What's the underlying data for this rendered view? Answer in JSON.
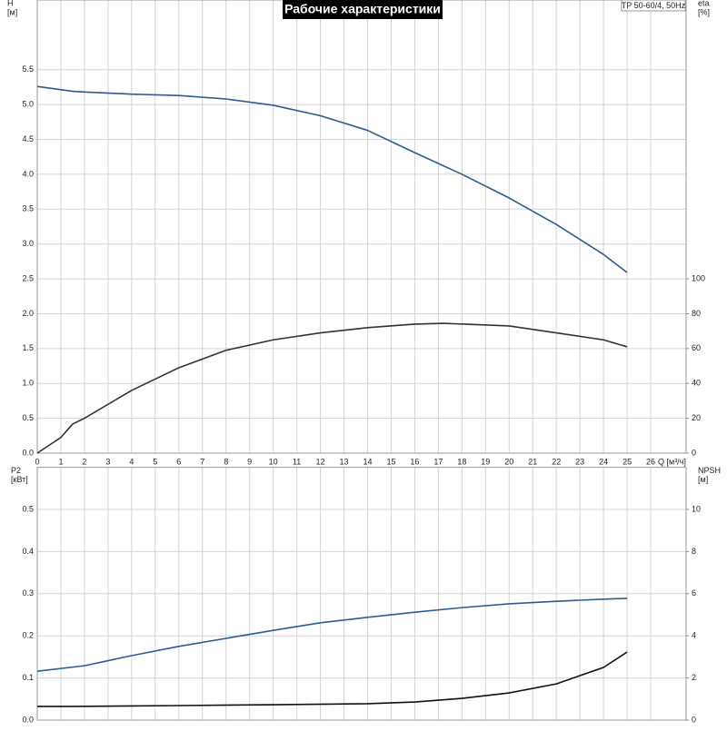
{
  "chart_data": [
    {
      "type": "line",
      "title": "Рабочие характеристики",
      "annotation": "TP 50-60/4, 50Hz",
      "ylabel": [
        "H",
        "[м]"
      ],
      "y2label": [
        "eta",
        "[%]"
      ],
      "xlabel": "Q [м³/ч]",
      "xlim": [
        0,
        27.5
      ],
      "xticks": [
        0,
        1,
        2,
        3,
        4,
        5,
        6,
        7,
        8,
        9,
        10,
        11,
        12,
        13,
        14,
        15,
        16,
        17,
        18,
        19,
        20,
        21,
        22,
        23,
        24,
        25,
        26
      ],
      "ylim": [
        0,
        6.5
      ],
      "yticks": [
        {
          "value": 0,
          "label": "0.0"
        },
        0.5,
        {
          "value": 1,
          "label": "1.0"
        },
        1.5,
        {
          "value": 2,
          "label": "2.0"
        },
        2.5,
        {
          "value": 3,
          "label": "3.0"
        },
        3.5,
        {
          "value": 4,
          "label": "4.0"
        },
        4.5,
        {
          "value": 5,
          "label": "5.0"
        },
        5.5
      ],
      "y2lim": [
        0,
        260
      ],
      "y2ticks": [
        0,
        20,
        40,
        60,
        80,
        100
      ],
      "grid": true,
      "series": [
        {
          "name": "H",
          "color": "#2e5b93",
          "x": [
            0,
            1.5,
            2,
            4,
            6,
            8,
            10,
            12,
            14,
            16,
            18,
            20,
            22,
            24,
            25
          ],
          "values": [
            5.26,
            5.19,
            5.18,
            5.15,
            5.13,
            5.08,
            4.99,
            4.84,
            4.63,
            4.31,
            4.0,
            3.66,
            3.28,
            2.85,
            2.59
          ]
        },
        {
          "name": "eta",
          "color": "#333333",
          "axis": "y2",
          "x": [
            0,
            1,
            1.5,
            2,
            4,
            6,
            8,
            10,
            12,
            14,
            16,
            17.2,
            20,
            22,
            24,
            25
          ],
          "values": [
            0,
            9,
            16.7,
            20,
            36,
            49,
            59,
            65,
            69,
            72,
            74,
            74.5,
            73,
            69,
            65,
            61
          ]
        }
      ]
    },
    {
      "type": "line",
      "ylabel": [
        "P2",
        "[кВт]"
      ],
      "y2label": [
        "NPSH",
        "[м]"
      ],
      "xlim": [
        0,
        27.5
      ],
      "ylim": [
        0,
        0.6
      ],
      "yticks": [
        {
          "value": 0,
          "label": "0.0"
        },
        0.1,
        0.2,
        0.3,
        0.4,
        0.5
      ],
      "y2lim": [
        0,
        12
      ],
      "y2ticks": [
        0,
        2,
        4,
        6,
        8,
        10
      ],
      "grid": true,
      "series": [
        {
          "name": "P2",
          "color": "#2e5b93",
          "x": [
            0,
            2,
            4,
            6,
            8,
            10,
            12,
            14,
            16,
            18,
            20,
            22,
            24,
            25
          ],
          "values": [
            0.116,
            0.129,
            0.153,
            0.175,
            0.194,
            0.213,
            0.231,
            0.244,
            0.256,
            0.267,
            0.276,
            0.282,
            0.287,
            0.289
          ]
        },
        {
          "name": "NPSH",
          "color": "#111111",
          "axis": "y2",
          "x": [
            0,
            1.5,
            6,
            10,
            14,
            16,
            18,
            20,
            22,
            24,
            25
          ],
          "values": [
            0.65,
            0.65,
            0.69,
            0.73,
            0.78,
            0.86,
            1.03,
            1.29,
            1.72,
            2.5,
            3.23
          ]
        }
      ]
    }
  ]
}
